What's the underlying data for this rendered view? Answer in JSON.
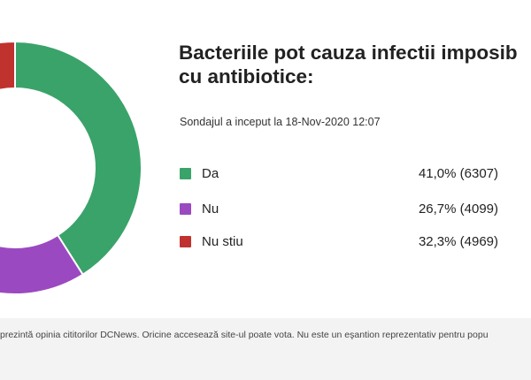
{
  "chart_data": {
    "type": "pie",
    "title_lines": [
      "Bacteriile pot cauza infectii imposib",
      "cu antibiotice:"
    ],
    "subtitle": "Sondajul a inceput la 18-Nov-2020 12:07",
    "categories": [
      "Da",
      "Nu",
      "Nu stiu"
    ],
    "percent_labels": [
      "41,0%",
      "26,7%",
      "32,3%"
    ],
    "values": [
      41.0,
      26.7,
      32.3
    ],
    "counts": [
      6307,
      4099,
      4969
    ],
    "value_labels": [
      "41,0% (6307)",
      "26,7% (4099)",
      "32,3% (4969)"
    ],
    "colors": [
      "#3aa36a",
      "#9b49c1",
      "#c0322e"
    ],
    "legend_position": "right"
  },
  "footnote": "prezintă opinia cititorilor DCNews. Oricine accesează site-ul poate vota. Nu este un eşantion reprezentativ pentru popu"
}
